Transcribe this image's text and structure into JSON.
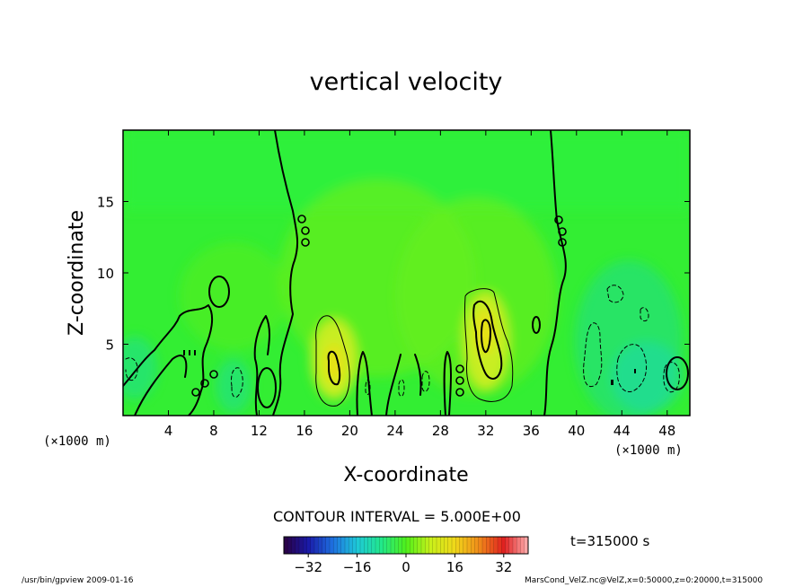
{
  "title": "vertical velocity",
  "contour_interval": "CONTOUR INTERVAL = 5.000E+00",
  "time_label": "t=315000 s",
  "footer_left": "/usr/bin/gpview  2009-01-16",
  "footer_right": "MarsCond_VelZ.nc@VelZ,x=0:50000,z=0:20000,t=315000",
  "chart_data": {
    "type": "heatmap",
    "title": "vertical velocity",
    "xlabel": "X-coordinate",
    "ylabel": "Z-coordinate",
    "x_unit_label": "(×1000 m)",
    "xlim": [
      0,
      50
    ],
    "ylim": [
      0,
      20
    ],
    "xticks": [
      4,
      8,
      12,
      16,
      20,
      24,
      28,
      32,
      36,
      40,
      44,
      48
    ],
    "yticks": [
      5,
      10,
      15
    ],
    "grid": false,
    "contour_interval": 5.0,
    "colorbar": {
      "min": -40,
      "max": 40,
      "ticks": [
        -32,
        -16,
        0,
        16,
        32
      ],
      "colors": [
        "#2a0040",
        "#1a1aa8",
        "#1e70e0",
        "#1ec8d8",
        "#22e88a",
        "#4ef01a",
        "#c8f01a",
        "#f0d81a",
        "#f08a1a",
        "#e02020",
        "#ffb0b0"
      ]
    },
    "updraft_cores": [
      {
        "x": 18.5,
        "z": 3.5,
        "peak": 10
      },
      {
        "x": 31.5,
        "z": 4.5,
        "peak": 10
      }
    ],
    "downdraft_regions": [
      {
        "x": 1.5,
        "z": 2.5
      },
      {
        "x": 10,
        "z": 2
      },
      {
        "x": 22,
        "z": 1.5
      },
      {
        "x": 29,
        "z": 2
      },
      {
        "x": 43,
        "z": 3.5
      },
      {
        "x": 46.5,
        "z": 3.5
      },
      {
        "x": 49,
        "z": 2.5
      }
    ],
    "zero_contour_columns": [
      13.5,
      38
    ]
  }
}
